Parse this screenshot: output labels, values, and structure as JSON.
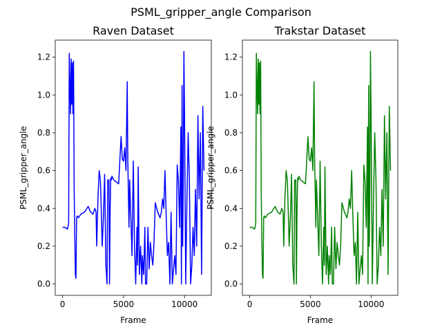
{
  "figure": {
    "suptitle": "PSML_gripper_angle Comparison"
  },
  "chart_data": [
    {
      "type": "line",
      "title": "Raven Dataset",
      "xlabel": "Frame",
      "ylabel": "PSML_gripper_angle",
      "color": "#0000ff",
      "xlim": [
        -600,
        12200
      ],
      "ylim": [
        -0.06,
        1.29
      ],
      "xticks": [
        0,
        5000,
        10000
      ],
      "xtick_labels": [
        "0",
        "5000",
        "10000"
      ],
      "yticks": [
        0.0,
        0.2,
        0.4,
        0.6,
        0.8,
        1.0,
        1.2
      ],
      "ytick_labels": [
        "0.0",
        "0.2",
        "0.4",
        "0.6",
        "0.8",
        "1.0",
        "1.2"
      ],
      "grid": false,
      "series": [
        {
          "x": [
            0,
            200,
            400,
            500,
            550,
            600,
            650,
            700,
            750,
            800,
            850,
            900,
            950,
            1000,
            1050,
            1100,
            1150,
            1200,
            1300,
            1500,
            1800,
            2100,
            2300,
            2500,
            2650,
            2750,
            2800,
            2900,
            3000,
            3100,
            3150,
            3250,
            3350,
            3450,
            3550,
            3650,
            3700,
            3800,
            3850,
            3900,
            3950,
            4000,
            4050,
            4200,
            4400,
            4600,
            4800,
            4900,
            5000,
            5100,
            5200,
            5300,
            5350,
            5400,
            5450,
            5500,
            5600,
            5700,
            5800,
            5900,
            6000,
            6100,
            6150,
            6200,
            6300,
            6400,
            6500,
            6550,
            6650,
            6750,
            6800,
            6900,
            7000,
            7100,
            7200,
            7300,
            7400,
            7500,
            7600,
            7800,
            8000,
            8100,
            8200,
            8300,
            8400,
            8500,
            8600,
            8700,
            8800,
            8900,
            9000,
            9100,
            9200,
            9300,
            9400,
            9500,
            9600,
            9700,
            9750,
            9800,
            9850,
            9900,
            9950,
            10000,
            10100,
            10200,
            10300,
            10400,
            10500,
            10600,
            10700,
            10800,
            10900,
            11000,
            11100,
            11200,
            11300,
            11400,
            11500,
            11600
          ],
          "y": [
            0.3,
            0.3,
            0.29,
            0.32,
            1.22,
            1.05,
            0.9,
            1.19,
            0.95,
            1.17,
            0.9,
            1.18,
            0.5,
            0.25,
            0.05,
            0.03,
            0.35,
            0.36,
            0.35,
            0.37,
            0.38,
            0.41,
            0.38,
            0.37,
            0.4,
            0.38,
            0.2,
            0.45,
            0.6,
            0.55,
            0.45,
            0.2,
            0.35,
            0.58,
            0.1,
            0.0,
            0.55,
            0.55,
            0.0,
            0.4,
            0.56,
            0.55,
            0.57,
            0.55,
            0.54,
            0.53,
            0.78,
            0.66,
            0.65,
            0.72,
            0.6,
            1.07,
            0.65,
            0.48,
            0.3,
            0.55,
            0.35,
            0.15,
            0.65,
            0.2,
            0.0,
            0.3,
            0.1,
            0.62,
            0.05,
            0.2,
            0.0,
            0.15,
            0.05,
            0.3,
            0.0,
            0.0,
            0.3,
            0.08,
            0.22,
            0.15,
            0.1,
            0.22,
            0.43,
            0.38,
            0.35,
            0.38,
            0.45,
            0.4,
            0.6,
            0.35,
            0.15,
            0.22,
            0.0,
            0.38,
            0.0,
            0.08,
            0.15,
            0.05,
            0.63,
            0.55,
            0.3,
            0.83,
            0.0,
            1.05,
            0.2,
            0.55,
            1.23,
            0.9,
            0.0,
            0.45,
            0.8,
            0.55,
            0.0,
            0.1,
            0.3,
            0.15,
            0.5,
            0.2,
            0.89,
            0.45,
            0.8,
            0.05,
            0.94,
            0.6
          ]
        }
      ]
    },
    {
      "type": "line",
      "title": "Trakstar Dataset",
      "xlabel": "Frame",
      "ylabel": "PSML_gripper_angle",
      "color": "#008000",
      "xlim": [
        -600,
        12200
      ],
      "ylim": [
        -0.06,
        1.29
      ],
      "xticks": [
        0,
        5000,
        10000
      ],
      "xtick_labels": [
        "0",
        "5000",
        "10000"
      ],
      "yticks": [
        0.0,
        0.2,
        0.4,
        0.6,
        0.8,
        1.0,
        1.2
      ],
      "ytick_labels": [
        "0.0",
        "0.2",
        "0.4",
        "0.6",
        "0.8",
        "1.0",
        "1.2"
      ],
      "grid": false,
      "series": [
        {
          "x": [
            0,
            200,
            400,
            500,
            550,
            600,
            650,
            700,
            750,
            800,
            850,
            900,
            950,
            1000,
            1050,
            1100,
            1150,
            1200,
            1300,
            1500,
            1800,
            2100,
            2300,
            2500,
            2650,
            2750,
            2800,
            2900,
            3000,
            3100,
            3150,
            3250,
            3350,
            3450,
            3550,
            3650,
            3700,
            3800,
            3850,
            3900,
            3950,
            4000,
            4050,
            4200,
            4400,
            4600,
            4800,
            4900,
            5000,
            5100,
            5200,
            5300,
            5350,
            5400,
            5450,
            5500,
            5600,
            5700,
            5800,
            5900,
            6000,
            6100,
            6150,
            6200,
            6300,
            6400,
            6500,
            6550,
            6650,
            6750,
            6800,
            6900,
            7000,
            7100,
            7200,
            7300,
            7400,
            7500,
            7600,
            7800,
            8000,
            8100,
            8200,
            8300,
            8400,
            8500,
            8600,
            8700,
            8800,
            8900,
            9000,
            9100,
            9200,
            9300,
            9400,
            9500,
            9600,
            9700,
            9750,
            9800,
            9850,
            9900,
            9950,
            10000,
            10100,
            10200,
            10300,
            10400,
            10500,
            10600,
            10700,
            10800,
            10900,
            11000,
            11100,
            11200,
            11300,
            11400,
            11500,
            11600
          ],
          "y": [
            0.3,
            0.3,
            0.29,
            0.32,
            1.22,
            1.05,
            0.9,
            1.19,
            0.95,
            1.17,
            0.9,
            1.18,
            0.5,
            0.25,
            0.05,
            0.03,
            0.35,
            0.36,
            0.35,
            0.37,
            0.38,
            0.41,
            0.38,
            0.37,
            0.4,
            0.38,
            0.2,
            0.45,
            0.6,
            0.55,
            0.45,
            0.2,
            0.35,
            0.58,
            0.1,
            0.0,
            0.55,
            0.55,
            0.0,
            0.4,
            0.56,
            0.55,
            0.57,
            0.55,
            0.54,
            0.53,
            0.78,
            0.66,
            0.65,
            0.72,
            0.6,
            1.07,
            0.65,
            0.48,
            0.3,
            0.55,
            0.35,
            0.15,
            0.65,
            0.2,
            0.0,
            0.3,
            0.1,
            0.62,
            0.05,
            0.2,
            0.0,
            0.15,
            0.05,
            0.3,
            0.0,
            0.0,
            0.3,
            0.08,
            0.22,
            0.15,
            0.1,
            0.22,
            0.43,
            0.38,
            0.35,
            0.38,
            0.45,
            0.4,
            0.6,
            0.35,
            0.15,
            0.22,
            0.0,
            0.38,
            0.0,
            0.08,
            0.15,
            0.05,
            0.63,
            0.55,
            0.3,
            0.83,
            0.0,
            1.05,
            0.2,
            0.55,
            1.23,
            0.9,
            0.0,
            0.45,
            0.8,
            0.55,
            0.0,
            0.1,
            0.3,
            0.15,
            0.5,
            0.2,
            0.89,
            0.45,
            0.8,
            0.05,
            0.94,
            0.6
          ]
        }
      ]
    }
  ]
}
